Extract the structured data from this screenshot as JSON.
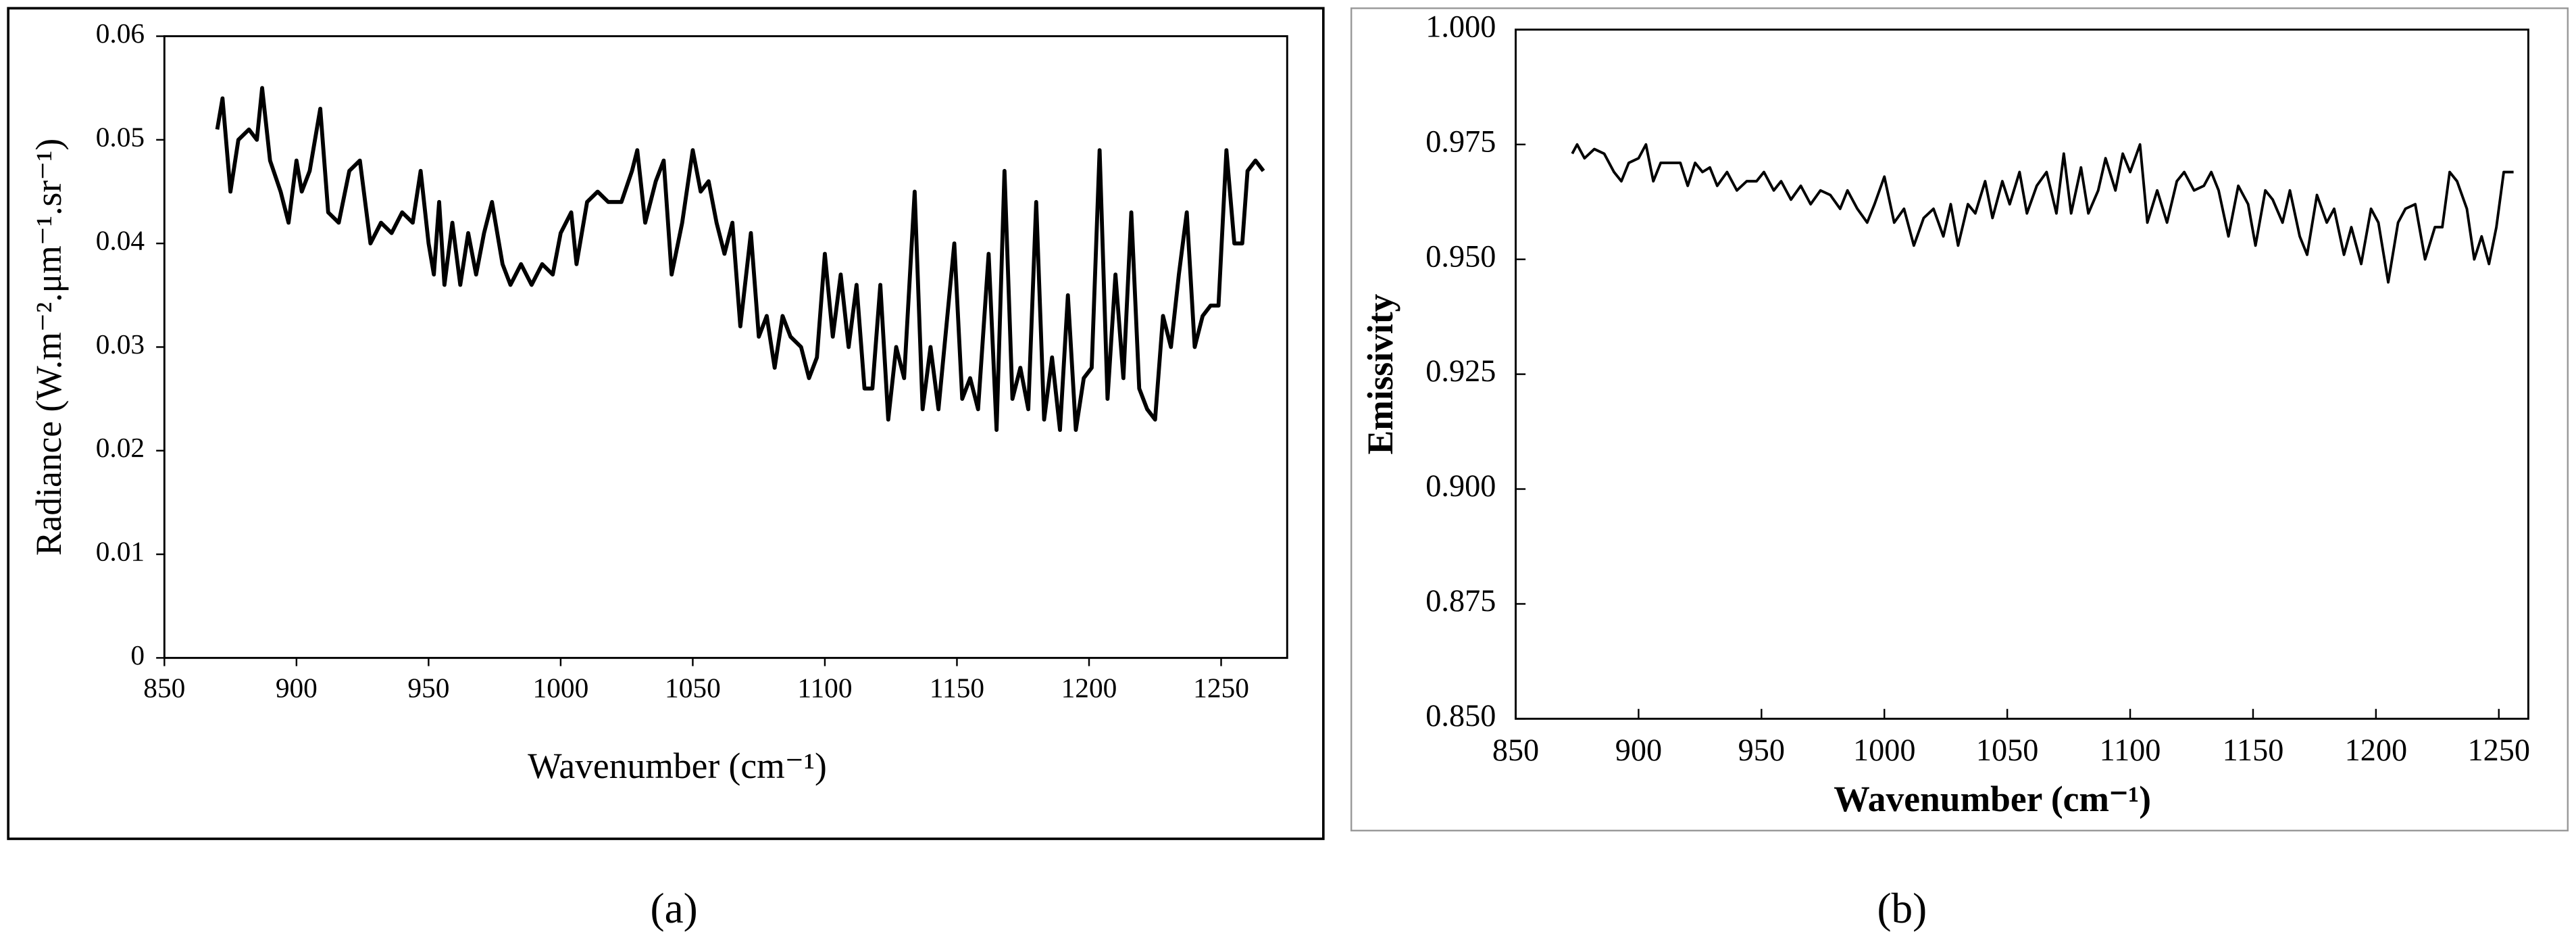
{
  "chart_data": [
    {
      "type": "line",
      "xlabel": "Wavenumber (cm⁻¹)",
      "ylabel": "Radiance (W.m⁻².μm⁻¹.sr⁻¹)",
      "xlim": [
        850,
        1275
      ],
      "xticks": [
        850,
        900,
        950,
        1000,
        1050,
        1100,
        1150,
        1200,
        1250
      ],
      "ylim": [
        0,
        0.06
      ],
      "yticks": [
        0,
        0.01,
        0.02,
        0.03,
        0.04,
        0.05,
        0.06
      ],
      "x": [
        870,
        872,
        875,
        878,
        882,
        885,
        887,
        890,
        894,
        897,
        900,
        902,
        905,
        909,
        912,
        916,
        920,
        924,
        928,
        932,
        936,
        940,
        944,
        947,
        950,
        952,
        954,
        956,
        959,
        962,
        965,
        968,
        971,
        974,
        978,
        981,
        985,
        989,
        993,
        997,
        1000,
        1004,
        1006,
        1010,
        1014,
        1018,
        1023,
        1027,
        1029,
        1032,
        1036,
        1039,
        1042,
        1046,
        1050,
        1053,
        1056,
        1059,
        1062,
        1065,
        1068,
        1072,
        1075,
        1078,
        1081,
        1084,
        1087,
        1091,
        1094,
        1097,
        1100,
        1103,
        1106,
        1109,
        1112,
        1115,
        1118,
        1121,
        1124,
        1127,
        1130,
        1134,
        1137,
        1140,
        1143,
        1146,
        1149,
        1152,
        1155,
        1158,
        1162,
        1165,
        1168,
        1171,
        1174,
        1177,
        1180,
        1183,
        1186,
        1189,
        1192,
        1195,
        1198,
        1201,
        1204,
        1207,
        1210,
        1213,
        1216,
        1219,
        1222,
        1225,
        1228,
        1231,
        1234,
        1237,
        1240,
        1243,
        1246,
        1249,
        1252,
        1255,
        1258,
        1260,
        1263,
        1266
      ],
      "series": [
        {
          "color": "#000000",
          "values": [
            0.051,
            0.054,
            0.045,
            0.05,
            0.051,
            0.05,
            0.055,
            0.048,
            0.045,
            0.042,
            0.048,
            0.045,
            0.047,
            0.053,
            0.043,
            0.042,
            0.047,
            0.048,
            0.04,
            0.042,
            0.041,
            0.043,
            0.042,
            0.047,
            0.04,
            0.037,
            0.044,
            0.036,
            0.042,
            0.036,
            0.041,
            0.037,
            0.041,
            0.044,
            0.038,
            0.036,
            0.038,
            0.036,
            0.038,
            0.037,
            0.041,
            0.043,
            0.038,
            0.044,
            0.045,
            0.044,
            0.044,
            0.047,
            0.049,
            0.042,
            0.046,
            0.048,
            0.037,
            0.042,
            0.049,
            0.045,
            0.046,
            0.042,
            0.039,
            0.042,
            0.032,
            0.041,
            0.031,
            0.033,
            0.028,
            0.033,
            0.031,
            0.03,
            0.027,
            0.029,
            0.039,
            0.031,
            0.037,
            0.03,
            0.036,
            0.026,
            0.026,
            0.036,
            0.023,
            0.03,
            0.027,
            0.045,
            0.024,
            0.03,
            0.024,
            0.032,
            0.04,
            0.025,
            0.027,
            0.024,
            0.039,
            0.022,
            0.047,
            0.025,
            0.028,
            0.024,
            0.044,
            0.023,
            0.029,
            0.022,
            0.035,
            0.022,
            0.027,
            0.028,
            0.049,
            0.025,
            0.037,
            0.027,
            0.043,
            0.026,
            0.024,
            0.023,
            0.033,
            0.03,
            0.037,
            0.043,
            0.03,
            0.033,
            0.034,
            0.034,
            0.049,
            0.04,
            0.04,
            0.047,
            0.048,
            0.047
          ]
        }
      ]
    },
    {
      "type": "line",
      "xlabel": "Wavenumber (cm⁻¹)",
      "ylabel": "Emissivity",
      "xlim": [
        850,
        1262
      ],
      "xticks": [
        850,
        900,
        950,
        1000,
        1050,
        1100,
        1150,
        1200,
        1250
      ],
      "ylim": [
        0.85,
        1.0
      ],
      "yticks": [
        {
          "value": 0.85,
          "label": "0.850"
        },
        {
          "value": 0.875,
          "label": "0.875"
        },
        {
          "value": 0.9,
          "label": "0.900"
        },
        {
          "value": 0.925,
          "label": "0.925"
        },
        {
          "value": 0.95,
          "label": "0.950"
        },
        {
          "value": 0.975,
          "label": "0.975"
        },
        {
          "value": 1.0,
          "label": "1.000"
        }
      ],
      "x": [
        873,
        875,
        878,
        882,
        886,
        890,
        893,
        896,
        900,
        903,
        906,
        909,
        913,
        917,
        920,
        923,
        926,
        929,
        932,
        936,
        940,
        944,
        948,
        951,
        955,
        958,
        962,
        966,
        970,
        974,
        978,
        982,
        985,
        989,
        993,
        996,
        1000,
        1004,
        1008,
        1012,
        1016,
        1020,
        1024,
        1027,
        1030,
        1034,
        1037,
        1041,
        1044,
        1048,
        1051,
        1055,
        1058,
        1062,
        1066,
        1070,
        1073,
        1076,
        1080,
        1083,
        1087,
        1090,
        1094,
        1097,
        1100,
        1104,
        1107,
        1111,
        1115,
        1119,
        1122,
        1126,
        1130,
        1133,
        1136,
        1140,
        1144,
        1148,
        1151,
        1155,
        1158,
        1162,
        1165,
        1169,
        1172,
        1176,
        1180,
        1183,
        1187,
        1190,
        1194,
        1198,
        1201,
        1205,
        1209,
        1212,
        1216,
        1220,
        1224,
        1227,
        1230,
        1233,
        1237,
        1240,
        1243,
        1246,
        1249,
        1252,
        1256
      ],
      "series": [
        {
          "color": "#000000",
          "values": [
            0.973,
            0.975,
            0.972,
            0.974,
            0.973,
            0.969,
            0.967,
            0.971,
            0.972,
            0.975,
            0.967,
            0.971,
            0.971,
            0.971,
            0.966,
            0.971,
            0.969,
            0.97,
            0.966,
            0.969,
            0.965,
            0.967,
            0.967,
            0.969,
            0.965,
            0.967,
            0.963,
            0.966,
            0.962,
            0.965,
            0.964,
            0.961,
            0.965,
            0.961,
            0.958,
            0.962,
            0.968,
            0.958,
            0.961,
            0.953,
            0.959,
            0.961,
            0.955,
            0.962,
            0.953,
            0.962,
            0.96,
            0.967,
            0.959,
            0.967,
            0.962,
            0.969,
            0.96,
            0.966,
            0.969,
            0.96,
            0.973,
            0.96,
            0.97,
            0.96,
            0.965,
            0.972,
            0.965,
            0.973,
            0.969,
            0.975,
            0.958,
            0.965,
            0.958,
            0.967,
            0.969,
            0.965,
            0.966,
            0.969,
            0.965,
            0.955,
            0.966,
            0.962,
            0.953,
            0.965,
            0.963,
            0.958,
            0.965,
            0.955,
            0.951,
            0.964,
            0.958,
            0.961,
            0.951,
            0.957,
            0.949,
            0.961,
            0.958,
            0.945,
            0.958,
            0.961,
            0.962,
            0.95,
            0.957,
            0.957,
            0.969,
            0.967,
            0.961,
            0.95,
            0.955,
            0.949,
            0.957,
            0.969,
            0.969
          ]
        }
      ]
    }
  ],
  "captions": [
    "(a)",
    "(b)"
  ]
}
